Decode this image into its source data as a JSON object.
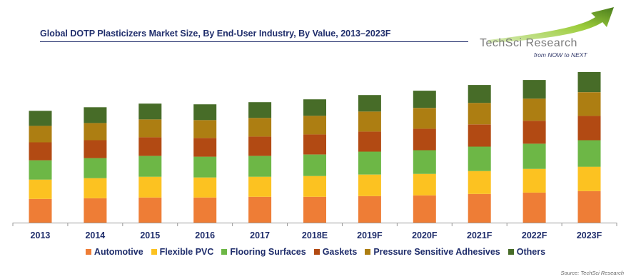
{
  "header": {
    "title": "Global DOTP Plasticizers Market Size, By End-User Industry, By Value, 2013–2023F"
  },
  "logo": {
    "name": "TechSci Research",
    "tagline": "from NOW to NEXT",
    "colors": {
      "arrow_light": "#9ccc3a",
      "arrow_dark": "#4a7d1d",
      "text": "#7a7a7a"
    }
  },
  "source": "Source: TechSci Research",
  "chart_data": {
    "type": "bar",
    "stacked": true,
    "categories": [
      "2013",
      "2014",
      "2015",
      "2016",
      "2017",
      "2018E",
      "2019F",
      "2020F",
      "2021F",
      "2022F",
      "2023F"
    ],
    "series": [
      {
        "name": "Automotive",
        "color": "#ee7d36",
        "values": [
          33,
          34,
          35,
          35,
          36,
          36,
          37,
          38,
          40,
          42,
          44
        ]
      },
      {
        "name": "Flexible PVC",
        "color": "#fcc221",
        "values": [
          27,
          28,
          29,
          28,
          28,
          29,
          30,
          30,
          32,
          33,
          34
        ]
      },
      {
        "name": "Flooring Surfaces",
        "color": "#6db746",
        "values": [
          27,
          28,
          29,
          29,
          29,
          30,
          32,
          33,
          34,
          35,
          37
        ]
      },
      {
        "name": "Gaskets",
        "color": "#b24a13",
        "values": [
          25,
          25,
          26,
          26,
          27,
          28,
          28,
          30,
          31,
          32,
          34
        ]
      },
      {
        "name": "Pressure Sensitive Adhesives",
        "color": "#ad7e12",
        "values": [
          23,
          24,
          25,
          25,
          26,
          26,
          28,
          29,
          30,
          31,
          33
        ]
      },
      {
        "name": "Others",
        "color": "#476c28",
        "values": [
          21,
          22,
          22,
          22,
          22,
          23,
          23,
          24,
          25,
          26,
          28
        ]
      }
    ],
    "xlabel": "",
    "ylabel": "",
    "ylim": [
      0,
      215
    ],
    "grid": false,
    "y_axis_visible": false,
    "legend": "bottom"
  }
}
